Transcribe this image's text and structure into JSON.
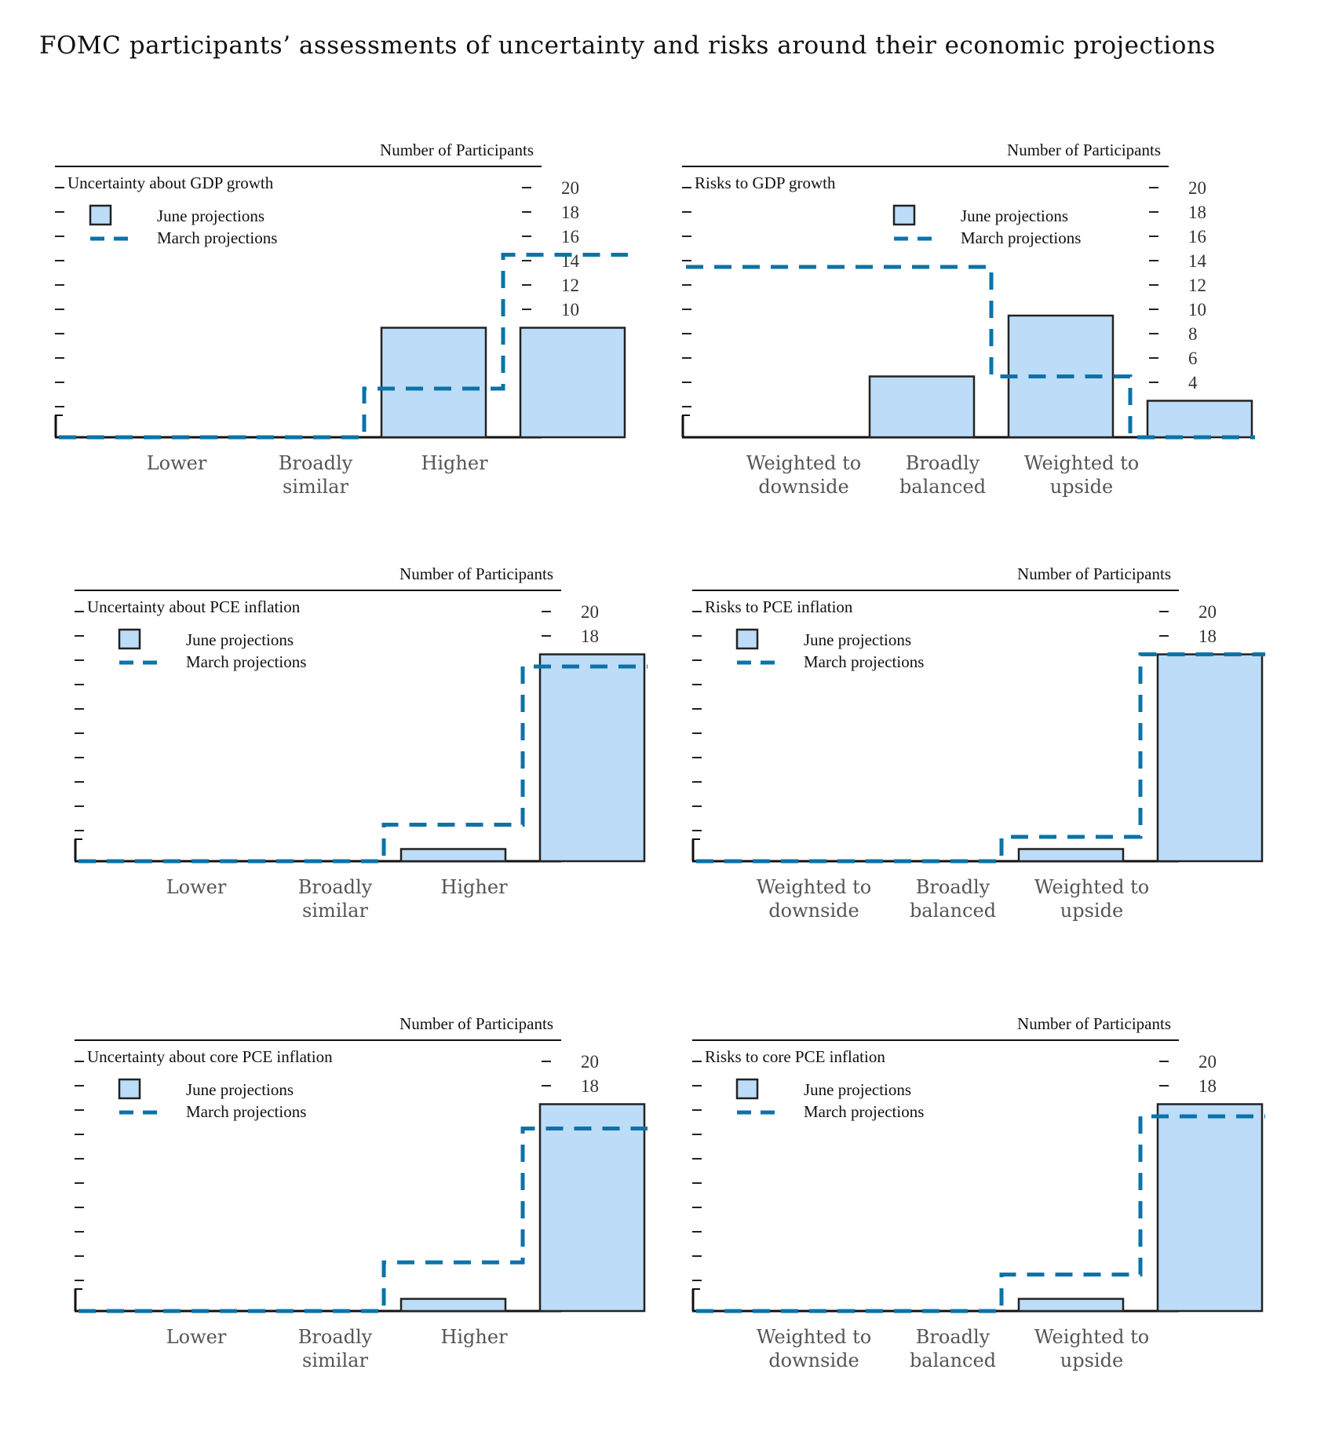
{
  "page_title": "FOMC participants’ assessments of uncertainty and risks around their economic projections",
  "colors": {
    "bar_fill": "#bcdcf8",
    "bar_stroke": "#222222",
    "march_line": "#0b73a8"
  },
  "chart_data": [
    {
      "type": "bar",
      "title": "Uncertainty about GDP growth",
      "ylabel": "Number of Participants",
      "ylim": [
        0,
        20
      ],
      "yticks": [
        "20",
        "18",
        "16",
        "14",
        "12",
        "10",
        "8",
        "6",
        "4",
        "2"
      ],
      "categories": [
        "Lower",
        "Broadly similar",
        "Higher"
      ],
      "category_lines": [
        [
          "Lower"
        ],
        [
          "Broadly",
          "similar"
        ],
        [
          "Higher"
        ]
      ],
      "legend": [
        "June projections",
        "March projections"
      ],
      "series": [
        {
          "name": "June projections",
          "style": "bar",
          "values": [
            0,
            9,
            9
          ]
        },
        {
          "name": "March projections",
          "style": "dashed-step",
          "values": [
            0,
            4,
            15
          ]
        }
      ]
    },
    {
      "type": "bar",
      "title": "Risks to GDP growth",
      "ylabel": "Number of Participants",
      "ylim": [
        0,
        20
      ],
      "yticks": [
        "20",
        "18",
        "16",
        "14",
        "12",
        "10",
        "8",
        "6",
        "4",
        "2"
      ],
      "categories": [
        "Weighted to downside",
        "Broadly balanced",
        "Weighted to upside"
      ],
      "category_lines": [
        [
          "Weighted to",
          "downside"
        ],
        [
          "Broadly",
          "balanced"
        ],
        [
          "Weighted to",
          "upside"
        ]
      ],
      "legend": [
        "June projections",
        "March projections"
      ],
      "series": [
        {
          "name": "June projections",
          "style": "bar",
          "values": [
            5,
            10,
            3
          ]
        },
        {
          "name": "March projections",
          "style": "dashed-step",
          "values": [
            14,
            5,
            0
          ]
        }
      ]
    },
    {
      "type": "bar",
      "title": "Uncertainty about PCE inflation",
      "ylabel": "Number of Participants",
      "ylim": [
        0,
        20
      ],
      "yticks": [
        "20",
        "18",
        "16",
        "14",
        "12",
        "10",
        "8",
        "6",
        "4",
        "2"
      ],
      "categories": [
        "Lower",
        "Broadly similar",
        "Higher"
      ],
      "category_lines": [
        [
          "Lower"
        ],
        [
          "Broadly",
          "similar"
        ],
        [
          "Higher"
        ]
      ],
      "legend": [
        "June projections",
        "March projections"
      ],
      "series": [
        {
          "name": "June projections",
          "style": "bar",
          "values": [
            0,
            1,
            17
          ]
        },
        {
          "name": "March projections",
          "style": "dashed-step",
          "values": [
            0,
            3,
            16
          ]
        }
      ]
    },
    {
      "type": "bar",
      "title": "Risks to PCE inflation",
      "ylabel": "Number of Participants",
      "ylim": [
        0,
        20
      ],
      "yticks": [
        "20",
        "18",
        "16",
        "14",
        "12",
        "10",
        "8",
        "6",
        "4",
        "2"
      ],
      "categories": [
        "Weighted to downside",
        "Broadly balanced",
        "Weighted to upside"
      ],
      "category_lines": [
        [
          "Weighted to",
          "downside"
        ],
        [
          "Broadly",
          "balanced"
        ],
        [
          "Weighted to",
          "upside"
        ]
      ],
      "legend": [
        "June projections",
        "March projections"
      ],
      "series": [
        {
          "name": "June projections",
          "style": "bar",
          "values": [
            0,
            1,
            17
          ]
        },
        {
          "name": "March projections",
          "style": "dashed-step",
          "values": [
            0,
            2,
            17
          ]
        }
      ]
    },
    {
      "type": "bar",
      "title": "Uncertainty about core PCE inflation",
      "ylabel": "Number of Participants",
      "ylim": [
        0,
        20
      ],
      "yticks": [
        "20",
        "18",
        "16",
        "14",
        "12",
        "10",
        "8",
        "6",
        "4",
        "2"
      ],
      "categories": [
        "Lower",
        "Broadly similar",
        "Higher"
      ],
      "category_lines": [
        [
          "Lower"
        ],
        [
          "Broadly",
          "similar"
        ],
        [
          "Higher"
        ]
      ],
      "legend": [
        "June projections",
        "March projections"
      ],
      "series": [
        {
          "name": "June projections",
          "style": "bar",
          "values": [
            0,
            1,
            17
          ]
        },
        {
          "name": "March projections",
          "style": "dashed-step",
          "values": [
            0,
            4,
            15
          ]
        }
      ]
    },
    {
      "type": "bar",
      "title": "Risks to core PCE inflation",
      "ylabel": "Number of Participants",
      "ylim": [
        0,
        20
      ],
      "yticks": [
        "20",
        "18",
        "16",
        "14",
        "12",
        "10",
        "8",
        "6",
        "4",
        "2"
      ],
      "categories": [
        "Weighted to downside",
        "Broadly balanced",
        "Weighted to upside"
      ],
      "category_lines": [
        [
          "Weighted to",
          "downside"
        ],
        [
          "Broadly",
          "balanced"
        ],
        [
          "Weighted to",
          "upside"
        ]
      ],
      "legend": [
        "June projections",
        "March projections"
      ],
      "series": [
        {
          "name": "June projections",
          "style": "bar",
          "values": [
            0,
            1,
            17
          ]
        },
        {
          "name": "March projections",
          "style": "dashed-step",
          "values": [
            0,
            3,
            16
          ]
        }
      ]
    }
  ]
}
